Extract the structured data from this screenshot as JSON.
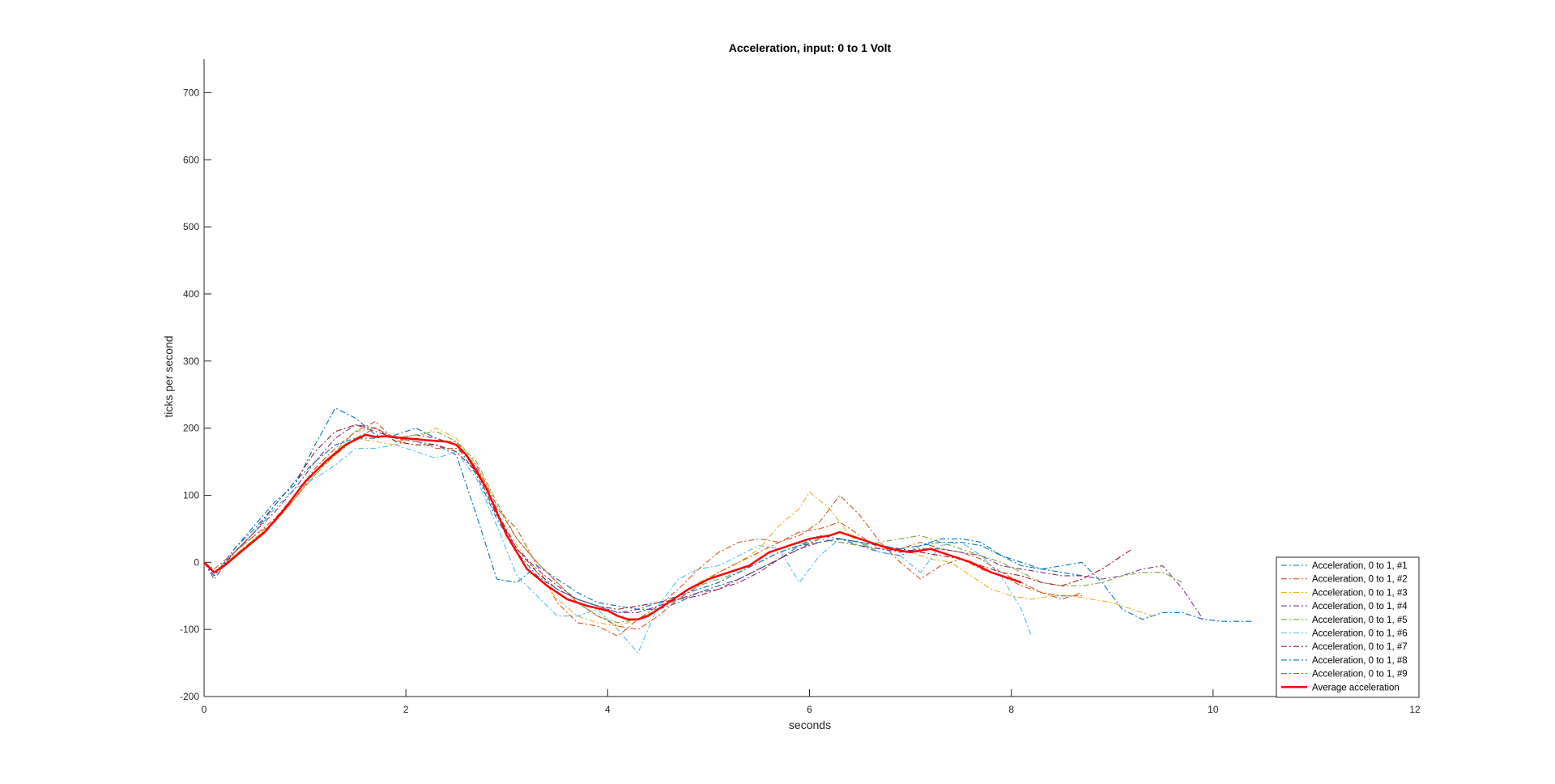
{
  "chart_data": {
    "type": "line",
    "title": "Acceleration, input: 0 to 1 Volt",
    "xlabel": "seconds",
    "ylabel": "ticks per second",
    "xlim": [
      0,
      12
    ],
    "ylim": [
      -200,
      750
    ],
    "xticks": [
      "0",
      "2",
      "4",
      "6",
      "8",
      "10",
      "12"
    ],
    "yticks": [
      "-200",
      "-100",
      "0",
      "100",
      "200",
      "300",
      "400",
      "500",
      "600",
      "700"
    ],
    "grid": false,
    "legend_position": "bottom-right",
    "series": [
      {
        "name": "Acceleration, 0 to 1, #1",
        "color": "#0072BD",
        "style": "dash-dot",
        "x": [
          0,
          0.1,
          0.3,
          0.5,
          0.7,
          0.9,
          1.1,
          1.3,
          1.5,
          1.7,
          1.9,
          2.1,
          2.3,
          2.5,
          2.7,
          2.9,
          3.1,
          3.3,
          3.5,
          3.7,
          3.9,
          4.1,
          4.3,
          4.5,
          4.7,
          4.9,
          5.1,
          5.3,
          5.5,
          5.7,
          5.9,
          6.1,
          6.3,
          6.5,
          6.7,
          6.9,
          7.1,
          7.3,
          7.5,
          7.7,
          7.9,
          8.1,
          8.3,
          8.5,
          8.7,
          8.9,
          9.1,
          9.3,
          9.5,
          9.7,
          9.9,
          10.1,
          10.4
        ],
        "y": [
          0,
          -20,
          20,
          55,
          90,
          115,
          175,
          230,
          215,
          190,
          185,
          180,
          175,
          160,
          70,
          -25,
          -30,
          -5,
          -25,
          -45,
          -60,
          -65,
          -70,
          -70,
          -60,
          -45,
          -35,
          -25,
          -10,
          5,
          25,
          40,
          35,
          25,
          15,
          10,
          25,
          35,
          35,
          30,
          10,
          -5,
          -10,
          -5,
          0,
          -30,
          -70,
          -85,
          -75,
          -75,
          -85,
          -88,
          -88
        ]
      },
      {
        "name": "Acceleration, 0 to 1, #2",
        "color": "#D95319",
        "style": "dash-dot",
        "x": [
          0,
          0.1,
          0.3,
          0.5,
          0.7,
          0.9,
          1.1,
          1.3,
          1.5,
          1.7,
          1.9,
          2.1,
          2.3,
          2.5,
          2.7,
          2.9,
          3.1,
          3.3,
          3.5,
          3.7,
          3.9,
          4.1,
          4.3,
          4.5,
          4.7,
          4.9,
          5.1,
          5.3,
          5.5,
          5.7,
          5.9,
          6.1,
          6.3,
          6.5,
          6.7,
          6.9,
          7.1,
          7.3,
          7.5,
          7.7,
          7.9,
          8.1,
          8.3,
          8.5,
          8.7
        ],
        "y": [
          0,
          -15,
          15,
          40,
          65,
          100,
          140,
          170,
          195,
          210,
          180,
          185,
          180,
          180,
          140,
          80,
          50,
          -5,
          -60,
          -90,
          -95,
          -110,
          -85,
          -65,
          -40,
          -10,
          15,
          30,
          35,
          30,
          45,
          50,
          60,
          40,
          20,
          20,
          30,
          20,
          15,
          5,
          -15,
          -30,
          -45,
          -55,
          -45
        ]
      },
      {
        "name": "Acceleration, 0 to 1, #3",
        "color": "#EDB120",
        "style": "dash-dot",
        "x": [
          0,
          0.1,
          0.3,
          0.5,
          0.7,
          0.9,
          1.1,
          1.3,
          1.5,
          1.7,
          1.9,
          2.1,
          2.3,
          2.5,
          2.7,
          2.9,
          3.1,
          3.3,
          3.5,
          3.7,
          3.9,
          4.1,
          4.3,
          4.5,
          4.7,
          4.9,
          5.1,
          5.3,
          5.5,
          5.7,
          5.9,
          6.0,
          6.2,
          6.4,
          6.6,
          6.8,
          7.0,
          7.2,
          7.4,
          7.6,
          7.8,
          8.0,
          8.2,
          8.4,
          8.6,
          8.8,
          9.0,
          9.2,
          9.4
        ],
        "y": [
          0,
          -15,
          10,
          35,
          60,
          95,
          130,
          160,
          185,
          180,
          175,
          185,
          200,
          185,
          145,
          75,
          25,
          -15,
          -55,
          -80,
          -90,
          -95,
          -85,
          -70,
          -50,
          -30,
          -15,
          0,
          20,
          55,
          80,
          105,
          80,
          40,
          20,
          20,
          15,
          5,
          0,
          -20,
          -40,
          -50,
          -55,
          -50,
          -50,
          -55,
          -60,
          -70,
          -80
        ]
      },
      {
        "name": "Acceleration, 0 to 1, #4",
        "color": "#7E2F8E",
        "style": "dash-dot",
        "x": [
          0,
          0.1,
          0.3,
          0.5,
          0.7,
          0.9,
          1.1,
          1.3,
          1.5,
          1.7,
          1.9,
          2.1,
          2.3,
          2.5,
          2.7,
          2.9,
          3.1,
          3.3,
          3.5,
          3.7,
          3.9,
          4.1,
          4.3,
          4.5,
          4.7,
          4.9,
          5.1,
          5.3,
          5.5,
          5.7,
          5.9,
          6.1,
          6.3,
          6.5,
          6.7,
          6.9,
          7.1,
          7.3,
          7.5,
          7.7,
          7.9,
          8.1,
          8.3,
          8.5,
          8.7,
          8.9,
          9.1,
          9.3,
          9.5,
          9.7,
          9.9
        ],
        "y": [
          0,
          -25,
          15,
          45,
          75,
          110,
          150,
          185,
          205,
          195,
          185,
          190,
          185,
          175,
          140,
          75,
          20,
          -10,
          -35,
          -55,
          -65,
          -75,
          -75,
          -65,
          -55,
          -45,
          -40,
          -30,
          -15,
          5,
          20,
          35,
          30,
          25,
          20,
          15,
          20,
          20,
          15,
          10,
          -5,
          -10,
          -15,
          -20,
          -20,
          -25,
          -20,
          -10,
          -5,
          -40,
          -85
        ]
      },
      {
        "name": "Acceleration, 0 to 1, #5",
        "color": "#77AC30",
        "style": "dash-dot",
        "x": [
          0,
          0.1,
          0.3,
          0.5,
          0.7,
          0.9,
          1.1,
          1.3,
          1.5,
          1.7,
          1.9,
          2.1,
          2.3,
          2.5,
          2.7,
          2.9,
          3.1,
          3.3,
          3.5,
          3.7,
          3.9,
          4.1,
          4.3,
          4.5,
          4.7,
          4.9,
          5.1,
          5.3,
          5.5,
          5.7,
          5.9,
          6.1,
          6.3,
          6.5,
          6.7,
          6.9,
          7.1,
          7.3,
          7.5,
          7.7,
          7.9,
          8.1,
          8.3,
          8.5,
          8.7,
          8.9,
          9.1,
          9.3,
          9.5,
          9.7
        ],
        "y": [
          0,
          -20,
          10,
          35,
          60,
          95,
          130,
          165,
          195,
          200,
          185,
          190,
          195,
          180,
          150,
          90,
          35,
          0,
          -30,
          -60,
          -80,
          -90,
          -85,
          -70,
          -55,
          -35,
          -25,
          -15,
          0,
          15,
          25,
          35,
          30,
          25,
          30,
          35,
          40,
          30,
          20,
          10,
          0,
          -15,
          -30,
          -35,
          -35,
          -30,
          -20,
          -15,
          -15,
          -30
        ]
      },
      {
        "name": "Acceleration, 0 to 1, #6",
        "color": "#4DBEEE",
        "style": "dash-dot",
        "x": [
          0,
          0.1,
          0.3,
          0.5,
          0.7,
          0.9,
          1.1,
          1.3,
          1.5,
          1.7,
          1.9,
          2.1,
          2.3,
          2.5,
          2.7,
          2.9,
          3.1,
          3.3,
          3.5,
          3.7,
          3.9,
          4.1,
          4.3,
          4.5,
          4.7,
          4.9,
          5.1,
          5.3,
          5.5,
          5.7,
          5.9,
          6.1,
          6.3,
          6.5,
          6.7,
          6.9,
          7.1,
          7.3,
          7.5,
          7.7,
          7.9,
          8.1,
          8.2
        ],
        "y": [
          0,
          -15,
          15,
          45,
          80,
          110,
          125,
          145,
          170,
          170,
          175,
          165,
          155,
          165,
          125,
          55,
          -20,
          -50,
          -80,
          -80,
          -70,
          -100,
          -135,
          -65,
          -25,
          -10,
          -5,
          10,
          25,
          20,
          -30,
          10,
          35,
          30,
          15,
          10,
          -15,
          25,
          30,
          10,
          -20,
          -70,
          -110
        ]
      },
      {
        "name": "Acceleration, 0 to 1, #7",
        "color": "#A2142F",
        "style": "dash-dot",
        "x": [
          0,
          0.1,
          0.3,
          0.5,
          0.7,
          0.9,
          1.1,
          1.3,
          1.5,
          1.7,
          1.9,
          2.1,
          2.3,
          2.5,
          2.7,
          2.9,
          3.1,
          3.3,
          3.5,
          3.7,
          3.9,
          4.1,
          4.3,
          4.5,
          4.7,
          4.9,
          5.1,
          5.3,
          5.5,
          5.7,
          5.9,
          6.1,
          6.3,
          6.5,
          6.7,
          6.9,
          7.1,
          7.3,
          7.5,
          7.7,
          7.9,
          8.1,
          8.3,
          8.5,
          8.7,
          8.9,
          9.1,
          9.2
        ],
        "y": [
          0,
          -20,
          15,
          45,
          85,
          120,
          165,
          195,
          205,
          200,
          180,
          175,
          175,
          165,
          135,
          70,
          20,
          -15,
          -40,
          -55,
          -65,
          -70,
          -65,
          -60,
          -55,
          -50,
          -40,
          -25,
          -10,
          5,
          20,
          30,
          35,
          30,
          25,
          20,
          15,
          10,
          5,
          -5,
          -15,
          -20,
          -30,
          -35,
          -25,
          -10,
          10,
          20
        ]
      },
      {
        "name": "Acceleration, 0 to 1, #8",
        "color": "#0072BD",
        "style": "dash-dot",
        "x": [
          0,
          0.1,
          0.3,
          0.5,
          0.7,
          0.9,
          1.1,
          1.3,
          1.5,
          1.7,
          1.9,
          2.1,
          2.3,
          2.5,
          2.7,
          2.9,
          3.1,
          3.3,
          3.5,
          3.7,
          3.9,
          4.1,
          4.3,
          4.5,
          4.7,
          4.9,
          5.1,
          5.3,
          5.5,
          5.7,
          5.9,
          6.1,
          6.3,
          6.5,
          6.7,
          6.9,
          7.1,
          7.3,
          7.5,
          7.7,
          7.9,
          8.1,
          8.3,
          8.5,
          8.7
        ],
        "y": [
          0,
          -20,
          20,
          50,
          85,
          120,
          150,
          175,
          185,
          185,
          190,
          200,
          185,
          175,
          130,
          65,
          15,
          -20,
          -40,
          -55,
          -65,
          -75,
          -70,
          -60,
          -50,
          -40,
          -30,
          -15,
          0,
          15,
          25,
          30,
          35,
          30,
          25,
          20,
          25,
          30,
          30,
          25,
          10,
          0,
          -10,
          -15,
          -20
        ]
      },
      {
        "name": "Acceleration, 0 to 1, #9",
        "color": "#D95319",
        "style": "dash-dot",
        "x": [
          0,
          0.1,
          0.3,
          0.5,
          0.7,
          0.9,
          1.1,
          1.3,
          1.5,
          1.7,
          1.9,
          2.1,
          2.3,
          2.5,
          2.7,
          2.9,
          3.1,
          3.3,
          3.5,
          3.7,
          3.9,
          4.1,
          4.3,
          4.5,
          4.7,
          4.9,
          5.1,
          5.3,
          5.5,
          5.7,
          5.9,
          6.1,
          6.3,
          6.5,
          6.7,
          6.9,
          7.1,
          7.3,
          7.5,
          7.7,
          7.9,
          8.1,
          8.3,
          8.5,
          8.7
        ],
        "y": [
          0,
          -10,
          15,
          40,
          60,
          95,
          135,
          160,
          185,
          200,
          185,
          180,
          170,
          170,
          145,
          85,
          35,
          0,
          -30,
          -60,
          -80,
          -95,
          -100,
          -80,
          -55,
          -35,
          -15,
          0,
          15,
          30,
          40,
          60,
          100,
          70,
          30,
          0,
          -25,
          -5,
          5,
          -10,
          -20,
          -35,
          -45,
          -50,
          -50
        ]
      },
      {
        "name": "Average acceleration",
        "color": "#FF0000",
        "style": "solid",
        "x": [
          0,
          0.1,
          0.2,
          0.4,
          0.6,
          0.8,
          1.0,
          1.2,
          1.4,
          1.6,
          1.7,
          1.8,
          2.0,
          2.2,
          2.4,
          2.5,
          2.6,
          2.8,
          3.0,
          3.2,
          3.4,
          3.6,
          3.8,
          4.0,
          4.1,
          4.2,
          4.3,
          4.4,
          4.6,
          4.8,
          5.0,
          5.2,
          5.4,
          5.6,
          5.8,
          6.0,
          6.2,
          6.3,
          6.4,
          6.6,
          6.8,
          7.0,
          7.2,
          7.4,
          7.6,
          7.8,
          8.0,
          8.1
        ],
        "y": [
          0,
          -15,
          -5,
          20,
          45,
          80,
          120,
          150,
          175,
          190,
          187,
          188,
          185,
          182,
          180,
          175,
          160,
          110,
          40,
          -10,
          -35,
          -55,
          -65,
          -72,
          -80,
          -85,
          -85,
          -80,
          -60,
          -40,
          -25,
          -15,
          -5,
          15,
          25,
          35,
          40,
          45,
          40,
          30,
          20,
          15,
          20,
          10,
          0,
          -15,
          -25,
          -30
        ]
      }
    ]
  }
}
